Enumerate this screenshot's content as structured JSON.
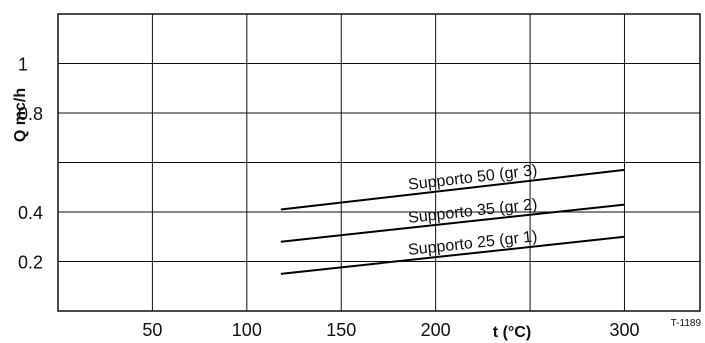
{
  "chart_data": {
    "type": "line",
    "xlabel": "t (°C)",
    "ylabel": "Q mc/h",
    "xlim": [
      0,
      340
    ],
    "ylim": [
      0,
      1.2
    ],
    "x_ticks": [
      50,
      100,
      150,
      200,
      300
    ],
    "x_gridlines": [
      50,
      100,
      150,
      200,
      250,
      300
    ],
    "y_ticks": [
      {
        "value": 0.2,
        "label": "0.2"
      },
      {
        "value": 0.4,
        "label": "0.4"
      },
      {
        "value": 0.8,
        "label": "0.8"
      },
      {
        "value": 1.0,
        "label": "1"
      }
    ],
    "y_gridlines": [
      0.2,
      0.4,
      0.6,
      0.8,
      1.0
    ],
    "grid": true,
    "series": [
      {
        "name": "Supporto 50 (gr 3)",
        "x": [
          118,
          300
        ],
        "y": [
          0.41,
          0.57
        ]
      },
      {
        "name": "Supporto 35 (gr 2)",
        "x": [
          118,
          300
        ],
        "y": [
          0.28,
          0.43
        ]
      },
      {
        "name": "Supporto 25 (gr 1)",
        "x": [
          118,
          300
        ],
        "y": [
          0.15,
          0.3
        ]
      }
    ],
    "annotations": [
      {
        "text": "T-1189",
        "position": "bottom-right"
      }
    ]
  }
}
